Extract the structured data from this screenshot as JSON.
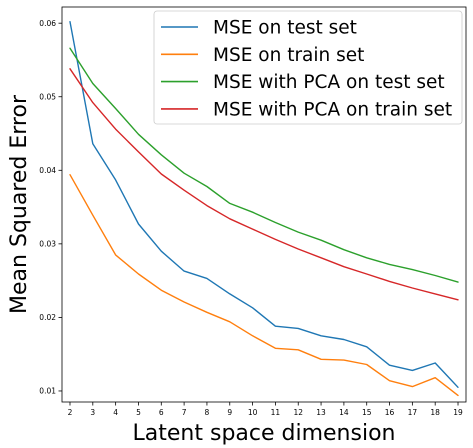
{
  "chart_data": {
    "type": "line",
    "title": "",
    "xlabel": "Latent space dimension",
    "ylabel": "Mean Squared Error",
    "x": [
      2,
      3,
      4,
      5,
      6,
      7,
      8,
      9,
      10,
      11,
      12,
      13,
      14,
      15,
      16,
      17,
      18,
      19
    ],
    "xticks": [
      "2",
      "3",
      "4",
      "5",
      "6",
      "7",
      "8",
      "9",
      "10",
      "11",
      "12",
      "13",
      "14",
      "15",
      "16",
      "17",
      "18",
      "19"
    ],
    "yticks": [
      "0.01",
      "0.02",
      "0.03",
      "0.04",
      "0.05",
      "0.06"
    ],
    "ytick_values": [
      0.01,
      0.02,
      0.03,
      0.04,
      0.05,
      0.06
    ],
    "xlim": [
      1.65,
      19.35
    ],
    "ylim": [
      0.0085,
      0.0622
    ],
    "grid": false,
    "legend_position": "top-right",
    "series": [
      {
        "name": "MSE on test set",
        "color": "#1f77b4",
        "values": [
          0.0602,
          0.0436,
          0.0387,
          0.0327,
          0.029,
          0.0263,
          0.0253,
          0.0232,
          0.0213,
          0.0188,
          0.0185,
          0.0175,
          0.017,
          0.016,
          0.0135,
          0.0128,
          0.0138,
          0.0105
        ]
      },
      {
        "name": "MSE on train set",
        "color": "#ff7f0e",
        "values": [
          0.0394,
          0.0339,
          0.0285,
          0.0259,
          0.0237,
          0.0221,
          0.0207,
          0.0194,
          0.0175,
          0.0158,
          0.0156,
          0.0143,
          0.0142,
          0.0136,
          0.0114,
          0.0106,
          0.0118,
          0.0094
        ]
      },
      {
        "name": "MSE with PCA on test set",
        "color": "#2ca02c",
        "values": [
          0.0566,
          0.0518,
          0.0484,
          0.0449,
          0.0421,
          0.0396,
          0.0378,
          0.0355,
          0.0343,
          0.0329,
          0.0316,
          0.0305,
          0.0292,
          0.0281,
          0.0272,
          0.0265,
          0.0257,
          0.0248
        ]
      },
      {
        "name": "MSE with PCA on train set",
        "color": "#d62728",
        "values": [
          0.0538,
          0.0492,
          0.0456,
          0.0425,
          0.0395,
          0.0373,
          0.0352,
          0.0334,
          0.032,
          0.0306,
          0.0293,
          0.0281,
          0.0269,
          0.0259,
          0.0249,
          0.024,
          0.0232,
          0.0224
        ]
      }
    ]
  }
}
